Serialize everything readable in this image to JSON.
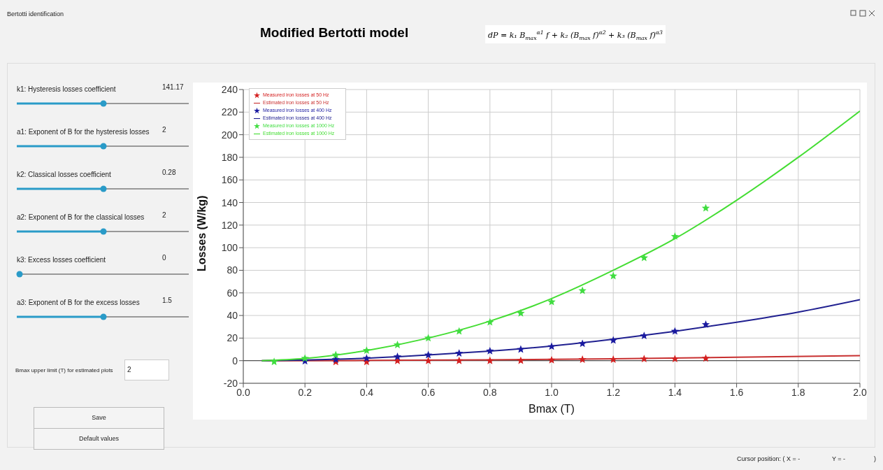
{
  "chart_data": [
    {
      "type": "scatter",
      "title": "Modified Bertotti model",
      "subtitle": "dP = k₁ B$_{max}$$^{α1}$ f + k₂ (B$_{max}$ f)$^{α2}$ + k₃ (B$_{max}$ f)$^{α3}$",
      "xlabel": "Bmax (T)",
      "ylabel": "Losses (W/kg)",
      "xlim": [
        0,
        2
      ],
      "ylim": [
        -20,
        240
      ],
      "xticks": [
        {
          "value": 0,
          "label": "0.0"
        },
        {
          "value": 0.2,
          "label": "0.2"
        },
        {
          "value": 0.4,
          "label": "0.4"
        },
        {
          "value": 0.6,
          "label": "0.6"
        },
        {
          "value": 0.8,
          "label": "0.8"
        },
        {
          "value": 1,
          "label": "1.0"
        },
        {
          "value": 1.2,
          "label": "1.2"
        },
        {
          "value": 1.4,
          "label": "1.4"
        },
        {
          "value": 1.6,
          "label": "1.6"
        },
        {
          "value": 1.8,
          "label": "1.8"
        },
        {
          "value": 2,
          "label": "2.0"
        }
      ],
      "yticks": [
        -20,
        0,
        20,
        40,
        60,
        80,
        100,
        120,
        140,
        160,
        180,
        200,
        220,
        240
      ],
      "grid": true,
      "legend": "top left",
      "line_style": "solid",
      "ref_lines": [
        {
          "axis": "y",
          "value": 0,
          "color": "#333333"
        }
      ],
      "series": [
        {
          "name": "Measured iron losses at 50 Hz",
          "type": "scatter",
          "marker": "star",
          "color": "#d42020",
          "x": [
            0.3,
            0.4,
            0.5,
            0.6,
            0.7,
            0.8,
            0.9,
            1.0,
            1.1,
            1.2,
            1.3,
            1.4,
            1.5
          ],
          "values": [
            -1,
            -1,
            -0.2,
            -0.2,
            -0.1,
            -0.1,
            0,
            0.5,
            1,
            1,
            1.5,
            1.5,
            2
          ]
        },
        {
          "name": "Estimated iron losses at 50 Hz",
          "type": "line",
          "marker": "none",
          "color": "#c83030",
          "x": [
            0.06,
            0.4,
            0.8,
            1.2,
            1.6,
            2.0
          ],
          "values": [
            0,
            0.2,
            0.8,
            1.7,
            3,
            4.5
          ]
        },
        {
          "name": "Measured iron losses at 400 Hz",
          "type": "scatter",
          "marker": "star",
          "color": "#1a1aa0",
          "x": [
            0.2,
            0.3,
            0.4,
            0.5,
            0.6,
            0.7,
            0.8,
            0.9,
            1.0,
            1.1,
            1.2,
            1.3,
            1.4,
            1.5
          ],
          "values": [
            -0.5,
            1,
            2,
            3.5,
            5,
            6.5,
            8.5,
            10,
            12.5,
            15,
            18,
            22,
            26,
            32
          ]
        },
        {
          "name": "Estimated iron losses at 400 Hz",
          "type": "line",
          "marker": "none",
          "color": "#202090",
          "x": [
            0.06,
            0.2,
            0.4,
            0.6,
            0.8,
            1.0,
            1.2,
            1.4,
            1.6,
            1.8,
            2.0
          ],
          "values": [
            0,
            0.6,
            2.2,
            5,
            8.5,
            13,
            19,
            26,
            34,
            43,
            54
          ]
        },
        {
          "name": "Measured iron losses at 1000 Hz",
          "type": "scatter",
          "marker": "star",
          "color": "#40dd40",
          "x": [
            0.1,
            0.2,
            0.3,
            0.4,
            0.5,
            0.6,
            0.7,
            0.8,
            0.9,
            1.0,
            1.1,
            1.2,
            1.3,
            1.4,
            1.5
          ],
          "values": [
            -1,
            2,
            5,
            9,
            14,
            20,
            26,
            34,
            42,
            52,
            62,
            75,
            91,
            110,
            135
          ]
        },
        {
          "name": "Estimated iron losses at 1000 Hz",
          "type": "line",
          "marker": "none",
          "color": "#44dd33",
          "x": [
            0.06,
            0.2,
            0.4,
            0.6,
            0.8,
            1.0,
            1.2,
            1.4,
            1.6,
            1.8,
            2.0
          ],
          "values": [
            0,
            2,
            9,
            20,
            35,
            55,
            80,
            108,
            142,
            180,
            221
          ]
        }
      ]
    },
    {
      "type": "other",
      "title": "Bertotti identification",
      "annotations": [
        "k1: Hysteresis losses coefficient",
        "141.17",
        "a1: Exponent of B for the hysteresis losses",
        "2",
        "k2: Classical losses coefficient",
        "0.28",
        "a2: Exponent of B for the classical losses",
        "2",
        "k3: Excess losses coefficient",
        "0",
        "a3: Exponent of B for the excess losses",
        "1.5",
        "Bmax upper limit (T) for estimated plots",
        "2",
        "Save",
        "Default values",
        "Cursor position: ( X = -",
        "Y = -",
        ")"
      ]
    }
  ]
}
